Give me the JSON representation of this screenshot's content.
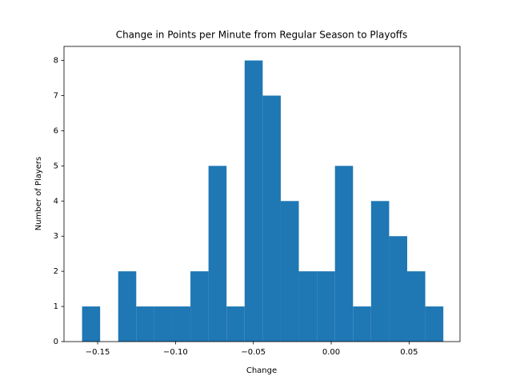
{
  "chart_data": {
    "type": "histogram",
    "title": "Change in Points per Minute from Regular Season to Playoffs",
    "x_label": "Change",
    "y_label": "Number of Players",
    "color": "#1f77b4",
    "bins": [
      -0.16,
      -0.1484,
      -0.1368,
      -0.1252,
      -0.1136,
      -0.102,
      -0.0904,
      -0.0788,
      -0.0672,
      -0.0556,
      -0.044,
      -0.0324,
      -0.0208,
      -0.0092,
      0.0024,
      0.014,
      0.0256,
      0.0372,
      0.0488,
      0.0604,
      0.072
    ],
    "values": [
      1,
      0,
      2,
      1,
      1,
      1,
      2,
      5,
      1,
      8,
      7,
      4,
      2,
      2,
      5,
      1,
      4,
      3,
      2,
      1
    ],
    "xlim": [
      -0.1716,
      0.0827
    ],
    "ylim": [
      0,
      8.4
    ],
    "xticks": [
      {
        "value": -0.15,
        "label": "−0.15"
      },
      {
        "value": -0.1,
        "label": "−0.10"
      },
      {
        "value": -0.05,
        "label": "−0.05"
      },
      {
        "value": 0,
        "label": "0.00"
      },
      0.05
    ],
    "yticks": [
      0,
      1,
      2,
      3,
      4,
      5,
      6,
      7,
      8
    ]
  }
}
